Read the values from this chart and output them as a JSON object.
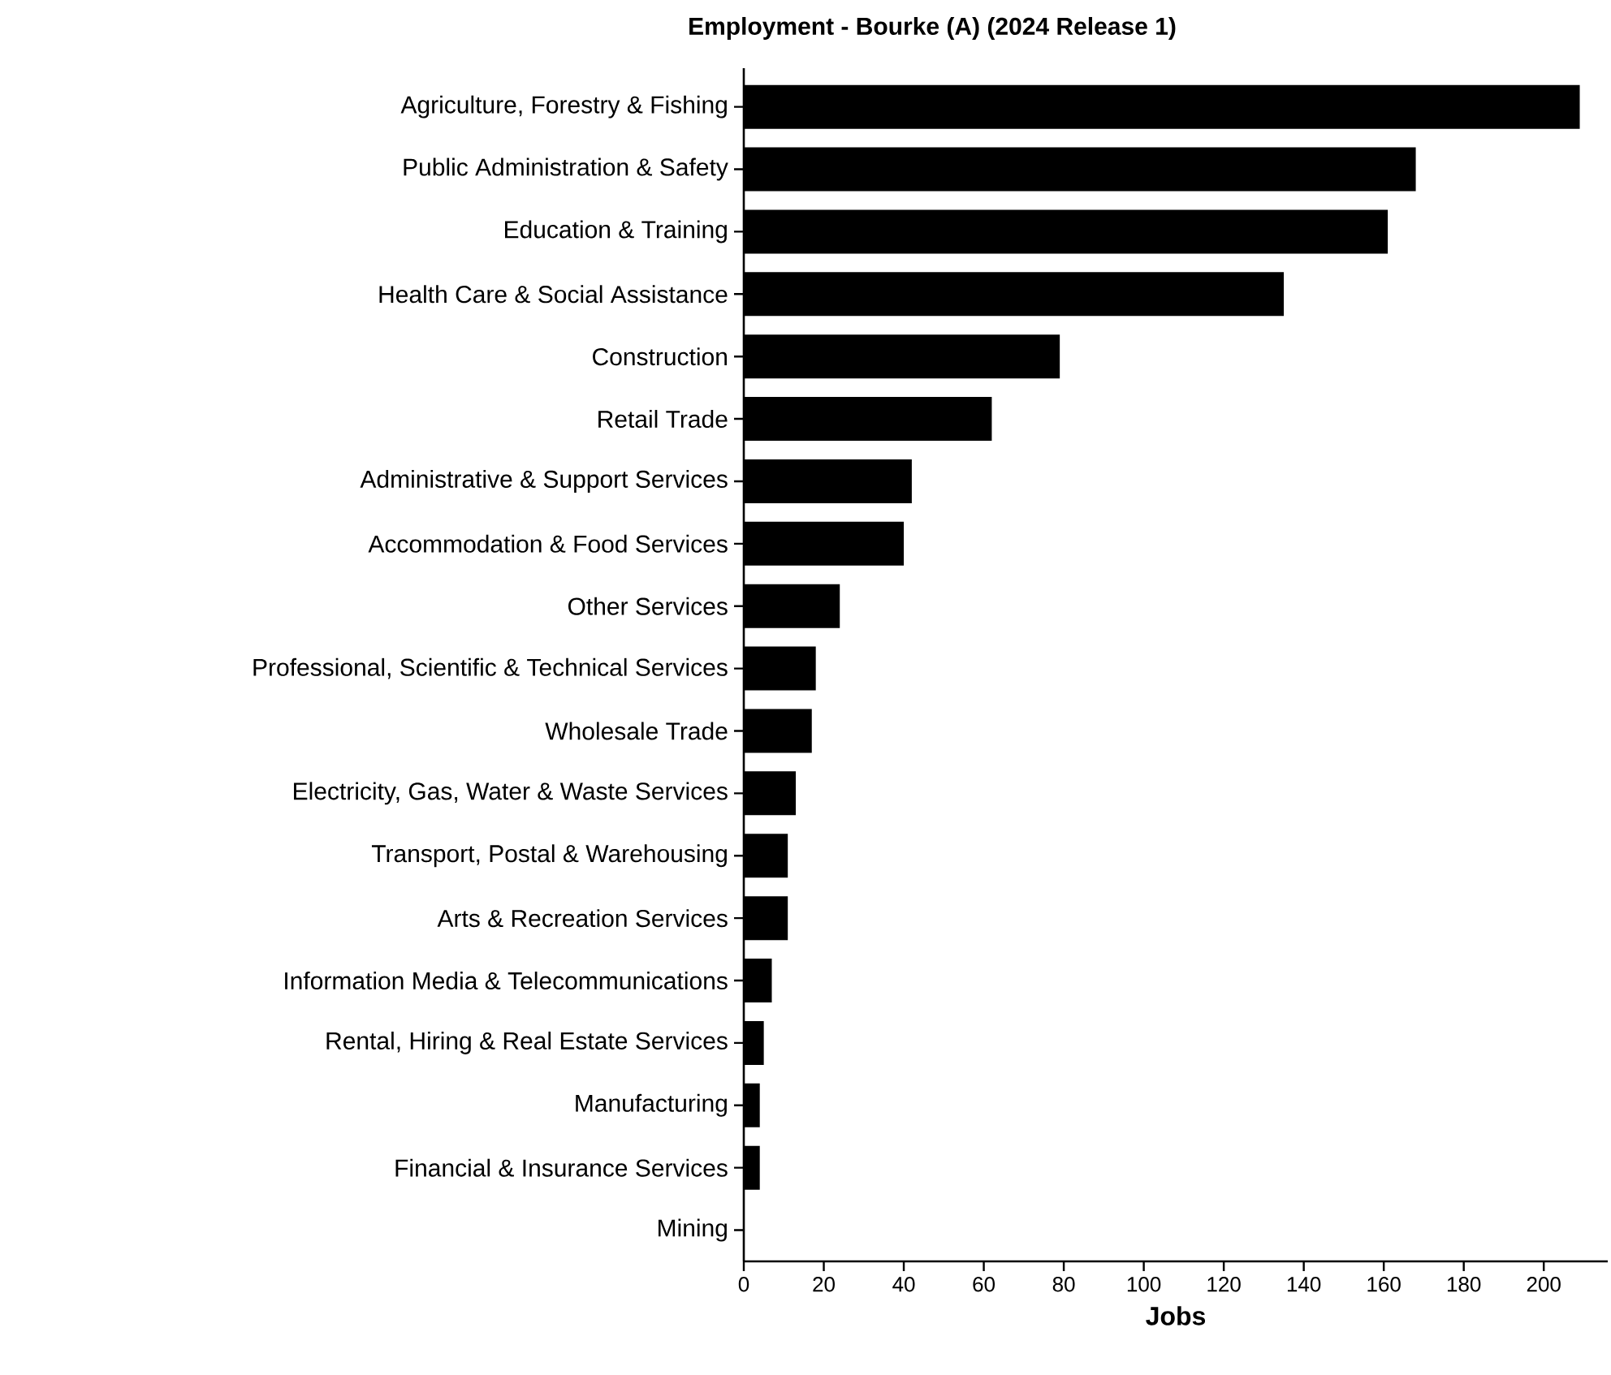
{
  "chart_data": {
    "type": "bar",
    "orientation": "horizontal",
    "title": "Employment - Bourke (A) (2024 Release 1)",
    "xlabel": "Jobs",
    "categories": [
      "Agriculture, Forestry & Fishing",
      "Public Administration & Safety",
      "Education & Training",
      "Health Care & Social Assistance",
      "Construction",
      "Retail Trade",
      "Administrative & Support Services",
      "Accommodation & Food Services",
      "Other Services",
      "Professional, Scientific & Technical Services",
      "Wholesale Trade",
      "Electricity, Gas, Water & Waste Services",
      "Transport, Postal & Warehousing",
      "Arts & Recreation Services",
      "Information Media & Telecommunications",
      "Rental, Hiring & Real Estate Services",
      "Manufacturing",
      "Financial & Insurance Services",
      "Mining"
    ],
    "values": [
      209,
      168,
      161,
      135,
      79,
      62,
      42,
      40,
      24,
      18,
      17,
      13,
      11,
      11,
      7,
      5,
      4,
      4,
      0
    ],
    "color": "#000000",
    "xlim": [
      0,
      216
    ],
    "xticks": [
      0,
      20,
      40,
      60,
      80,
      100,
      120,
      140,
      160,
      180,
      200
    ]
  }
}
